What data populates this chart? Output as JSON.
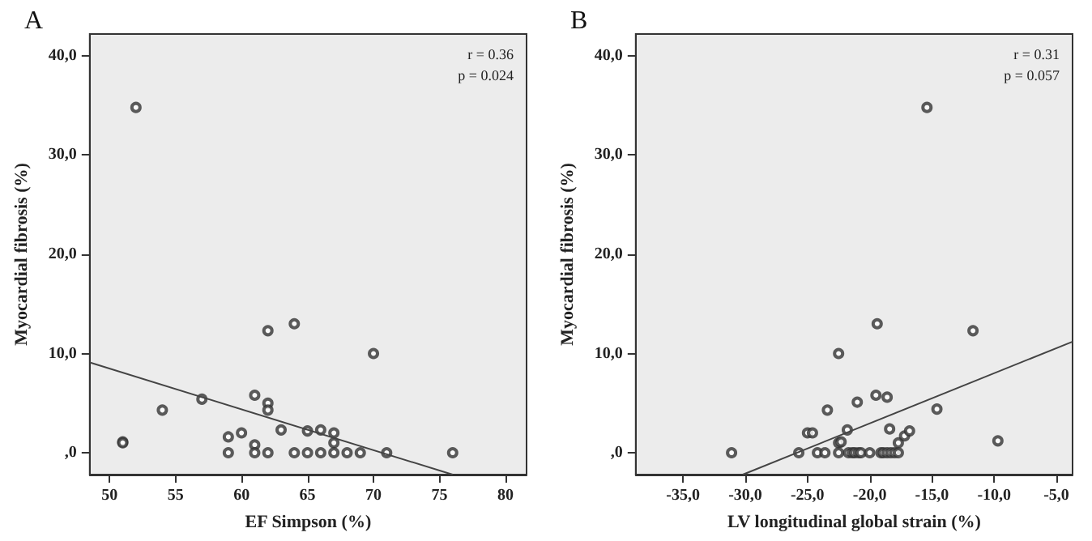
{
  "chart_data": [
    {
      "type": "scatter",
      "title": "A",
      "xlabel": "EF Simpson (%)",
      "ylabel": "Myocardial fibrosis (%)",
      "annotations": [
        "r = 0.36",
        "p = 0.024"
      ],
      "xlim": [
        48.5,
        81.6
      ],
      "ylim": [
        -2.2,
        42.2
      ],
      "xticks": [
        50,
        55,
        60,
        65,
        70,
        75,
        80
      ],
      "yticks": [
        {
          "value": 0,
          "label": ",0"
        },
        {
          "value": 10,
          "label": "10,0"
        },
        {
          "value": 20,
          "label": "20,0"
        },
        {
          "value": 30,
          "label": "30,0"
        },
        {
          "value": 40,
          "label": "40,0"
        }
      ],
      "grid": false,
      "series": [
        {
          "marker": "circle",
          "color": "#333333",
          "x": [
            51,
            51,
            52,
            54,
            57,
            59,
            59,
            60,
            61,
            61,
            61,
            62,
            62,
            62,
            62,
            63,
            64,
            64,
            65,
            65,
            66,
            66,
            67,
            67,
            67,
            68,
            69,
            70,
            71,
            76
          ],
          "values": [
            1.1,
            1.0,
            34.8,
            4.3,
            5.4,
            1.6,
            0,
            2.0,
            5.8,
            0.8,
            0,
            12.3,
            5.0,
            4.3,
            0,
            2.3,
            13.0,
            0,
            2.2,
            0,
            2.3,
            0,
            2.0,
            1.0,
            0,
            0,
            0,
            10.0,
            0,
            0
          ]
        },
        {
          "type": "line",
          "marker": "none",
          "color": "#444444",
          "x": [
            48.5,
            76
          ],
          "values": [
            9.1,
            -2.2
          ]
        }
      ]
    },
    {
      "type": "scatter",
      "title": "B",
      "xlabel": "LV longitudinal global strain (%)",
      "ylabel": "Myocardial fibrosis (%)",
      "annotations": [
        "r = 0.31",
        "p = 0.057"
      ],
      "xlim": [
        -38.8,
        -3.7
      ],
      "ylim": [
        -2.2,
        42.2
      ],
      "xticks": [
        {
          "value": -35,
          "label": "-35,0"
        },
        {
          "value": -30,
          "label": "-30,0"
        },
        {
          "value": -25,
          "label": "-25,0"
        },
        {
          "value": -20,
          "label": "-20,0"
        },
        {
          "value": -15,
          "label": "-15,0"
        },
        {
          "value": -10,
          "label": "-10,0"
        },
        {
          "value": -5,
          "label": "-5,0"
        }
      ],
      "yticks": [
        {
          "value": 0,
          "label": ",0"
        },
        {
          "value": 10,
          "label": "10,0"
        },
        {
          "value": 20,
          "label": "20,0"
        },
        {
          "value": 30,
          "label": "30,0"
        },
        {
          "value": 40,
          "label": "40,0"
        }
      ],
      "grid": false,
      "series": [
        {
          "marker": "circle",
          "color": "#333333",
          "x": [
            -31.1,
            -25.7,
            -25.0,
            -24.6,
            -24.2,
            -23.6,
            -23.4,
            -22.5,
            -22.3,
            -22.5,
            -21.8,
            -21.7,
            -21.4,
            -21.2,
            -20.9,
            -20.7,
            -21.0,
            -20.0,
            -19.5,
            -19.1,
            -18.9,
            -18.6,
            -18.3,
            -18.0,
            -17.7,
            -18.6,
            -18.4,
            -17.7,
            -17.2,
            -16.8,
            -14.6,
            -9.7,
            -15.4,
            -19.4,
            -11.7,
            -22.5
          ],
          "values": [
            0,
            0,
            2.0,
            2.0,
            0,
            0,
            4.3,
            1.0,
            1.1,
            0,
            2.3,
            0,
            0,
            0,
            0,
            0,
            5.1,
            0,
            5.8,
            0,
            0,
            0,
            0,
            0,
            0,
            5.6,
            2.4,
            1.0,
            1.7,
            2.2,
            4.4,
            1.2,
            34.8,
            13.0,
            12.3,
            10.0
          ]
        },
        {
          "type": "line",
          "marker": "none",
          "color": "#444444",
          "x": [
            -30.2,
            -3.7
          ],
          "values": [
            -2.2,
            11.2
          ]
        }
      ]
    }
  ]
}
